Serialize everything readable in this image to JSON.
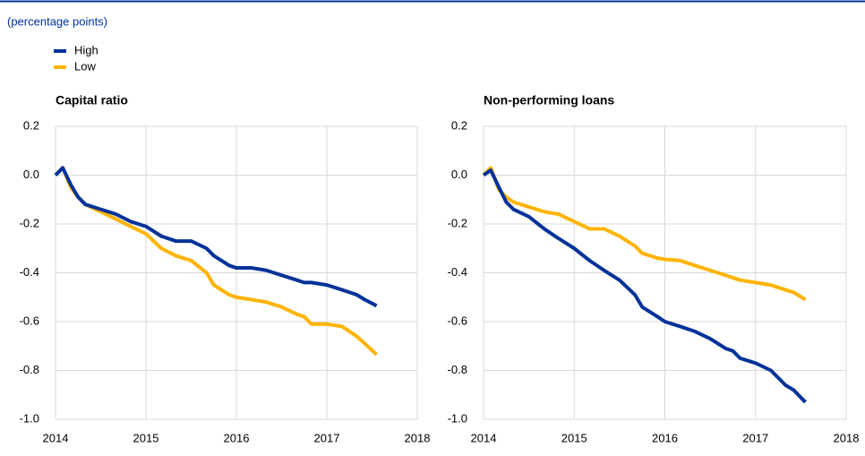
{
  "subtitle": "(percentage points)",
  "chart_data": [
    {
      "type": "line",
      "title": "Capital ratio",
      "x": [
        2014,
        2014.08,
        2014.17,
        2014.25,
        2014.33,
        2014.5,
        2014.67,
        2014.83,
        2015,
        2015.17,
        2015.33,
        2015.5,
        2015.67,
        2015.75,
        2015.92,
        2016,
        2016.17,
        2016.33,
        2016.5,
        2016.67,
        2016.75,
        2016.83,
        2017,
        2017.17,
        2017.33,
        2017.42,
        2017.55
      ],
      "series": [
        {
          "name": "High",
          "color": "#003299",
          "values": [
            0,
            0.03,
            -0.04,
            -0.09,
            -0.12,
            -0.14,
            -0.16,
            -0.19,
            -0.21,
            -0.25,
            -0.27,
            -0.27,
            -0.3,
            -0.33,
            -0.37,
            -0.38,
            -0.38,
            -0.39,
            -0.41,
            -0.43,
            -0.44,
            -0.44,
            -0.45,
            -0.47,
            -0.49,
            -0.51,
            -0.535
          ]
        },
        {
          "name": "Low",
          "color": "#ffb400",
          "values": [
            0,
            0.03,
            -0.05,
            -0.09,
            -0.12,
            -0.15,
            -0.18,
            -0.21,
            -0.24,
            -0.3,
            -0.33,
            -0.35,
            -0.4,
            -0.45,
            -0.49,
            -0.5,
            -0.51,
            -0.52,
            -0.54,
            -0.57,
            -0.58,
            -0.61,
            -0.61,
            -0.62,
            -0.66,
            -0.69,
            -0.735
          ]
        }
      ],
      "xlim": [
        2014,
        2018
      ],
      "xticks": [
        2014,
        2015,
        2016,
        2017,
        2018
      ],
      "ylim": [
        -1.0,
        0.2
      ],
      "yticks": [
        0.2,
        {
          "value": 0,
          "label": "0.0"
        },
        -0.2,
        -0.4,
        -0.6,
        -0.8,
        {
          "value": -1.0,
          "label": "-1.0"
        }
      ],
      "grid": true
    },
    {
      "type": "line",
      "title": "Non-performing loans",
      "x": [
        2014,
        2014.08,
        2014.17,
        2014.25,
        2014.33,
        2014.5,
        2014.67,
        2014.83,
        2015,
        2015.17,
        2015.33,
        2015.5,
        2015.67,
        2015.75,
        2015.92,
        2016,
        2016.17,
        2016.33,
        2016.5,
        2016.67,
        2016.75,
        2016.83,
        2017,
        2017.17,
        2017.33,
        2017.42,
        2017.55
      ],
      "series": [
        {
          "name": "High",
          "color": "#003299",
          "values": [
            0,
            0.02,
            -0.05,
            -0.11,
            -0.14,
            -0.17,
            -0.22,
            -0.26,
            -0.3,
            -0.35,
            -0.39,
            -0.43,
            -0.49,
            -0.54,
            -0.58,
            -0.6,
            -0.62,
            -0.64,
            -0.67,
            -0.71,
            -0.72,
            -0.75,
            -0.77,
            -0.8,
            -0.86,
            -0.88,
            -0.93
          ]
        },
        {
          "name": "Low",
          "color": "#ffb400",
          "values": [
            0,
            0.03,
            -0.06,
            -0.09,
            -0.11,
            -0.13,
            -0.15,
            -0.16,
            -0.19,
            -0.22,
            -0.22,
            -0.25,
            -0.29,
            -0.32,
            -0.34,
            -0.345,
            -0.35,
            -0.37,
            -0.39,
            -0.41,
            -0.42,
            -0.43,
            -0.44,
            -0.45,
            -0.47,
            -0.48,
            -0.51
          ]
        }
      ],
      "xlim": [
        2014,
        2018
      ],
      "xticks": [
        2014,
        2015,
        2016,
        2017,
        2018
      ],
      "ylim": [
        -1.0,
        0.2
      ],
      "yticks": [
        0.2,
        {
          "value": 0,
          "label": "0.0"
        },
        -0.2,
        -0.4,
        -0.6,
        -0.8,
        {
          "value": -1.0,
          "label": "-1.0"
        }
      ],
      "grid": true
    }
  ]
}
